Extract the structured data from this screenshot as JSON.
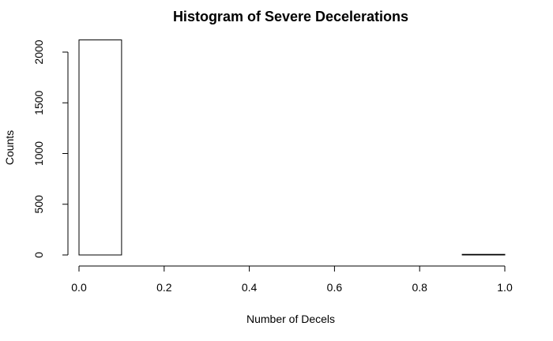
{
  "chart_data": {
    "type": "bar",
    "title": "Histogram of Severe Decelerations",
    "xlabel": "Number of Decels",
    "ylabel": "Counts",
    "bins": [
      {
        "start": 0.0,
        "end": 0.1,
        "count": 2120
      },
      {
        "start": 0.1,
        "end": 0.2,
        "count": 0
      },
      {
        "start": 0.2,
        "end": 0.3,
        "count": 0
      },
      {
        "start": 0.3,
        "end": 0.4,
        "count": 0
      },
      {
        "start": 0.4,
        "end": 0.5,
        "count": 0
      },
      {
        "start": 0.5,
        "end": 0.6,
        "count": 0
      },
      {
        "start": 0.6,
        "end": 0.7,
        "count": 0
      },
      {
        "start": 0.7,
        "end": 0.8,
        "count": 0
      },
      {
        "start": 0.8,
        "end": 0.9,
        "count": 0
      },
      {
        "start": 0.9,
        "end": 1.0,
        "count": 6
      }
    ],
    "xticks": [
      "0.0",
      "0.2",
      "0.4",
      "0.6",
      "0.8",
      "1.0"
    ],
    "yticks": [
      "0",
      "500",
      "1000",
      "1500",
      "2000"
    ],
    "xlim": [
      0,
      1
    ],
    "ylim": [
      0,
      2120
    ],
    "grid": false
  }
}
